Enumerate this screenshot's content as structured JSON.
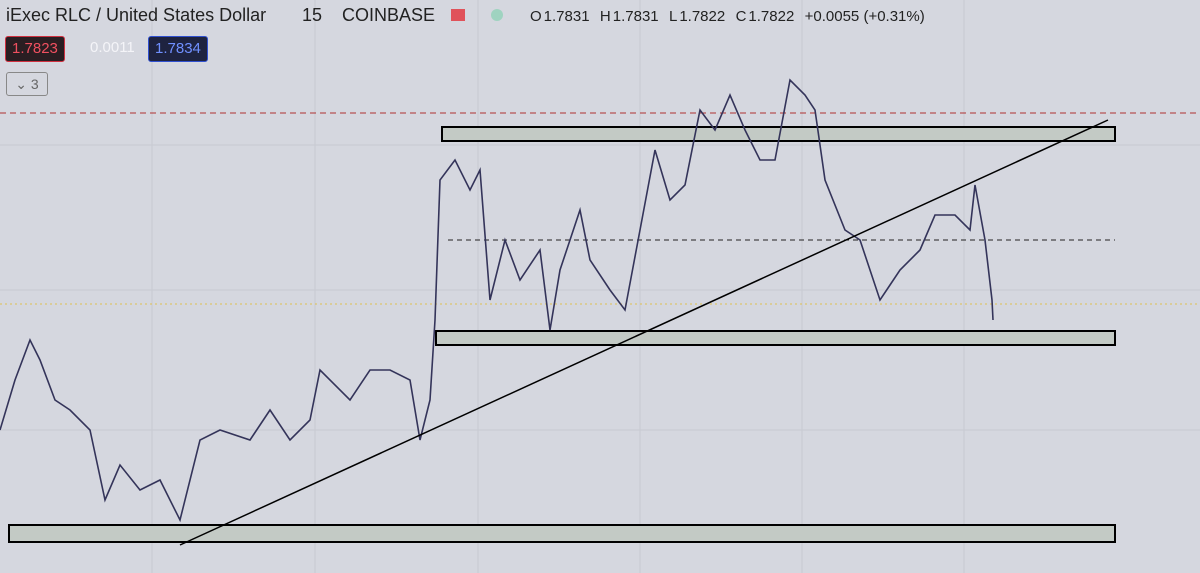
{
  "header": {
    "symbol": "iExec RLC / United States Dollar",
    "interval": "15",
    "exchange": "COINBASE"
  },
  "ohlc": {
    "o_label": "O",
    "o": "1.7831",
    "h_label": "H",
    "h": "1.7831",
    "l_label": "L",
    "l": "1.7822",
    "c_label": "C",
    "c": "1.7822",
    "change": "+0.0055 (+0.31%)"
  },
  "quote": {
    "bid": "1.7823",
    "spread": "0.0011",
    "ask": "1.7834"
  },
  "indicators_button": "3"
}
